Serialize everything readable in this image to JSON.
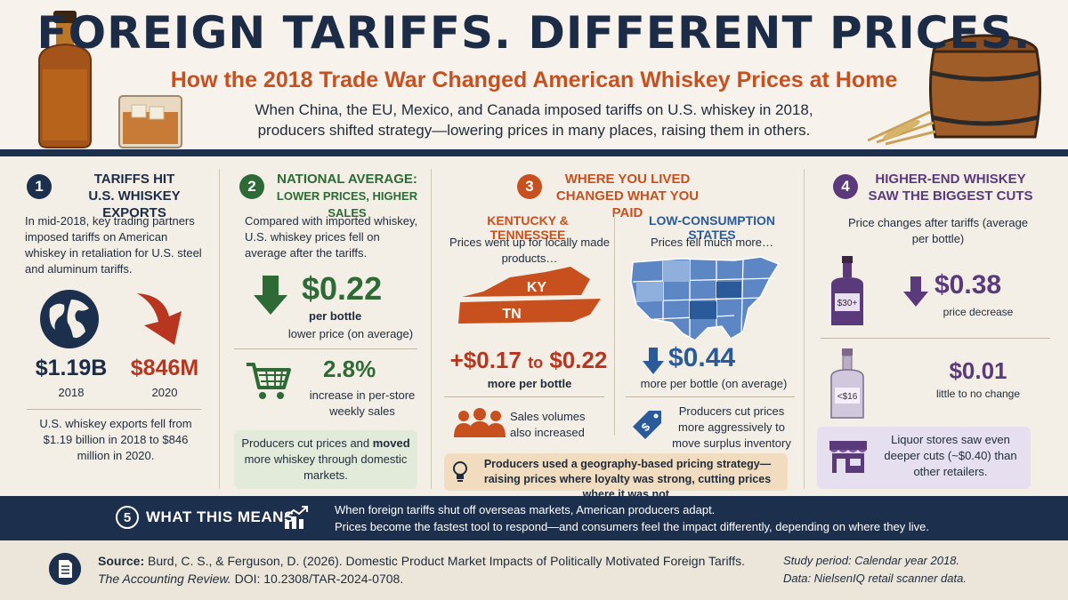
{
  "header": {
    "title": "FOREIGN TARIFFS. DIFFERENT PRICES.",
    "subtitle": "How the 2018 Trade War Changed American Whiskey Prices at Home",
    "intro_line1": "When China, the EU, Mexico, and Canada imposed tariffs on U.S. whiskey in 2018,",
    "intro_line2": "producers shifted strategy—lowering prices in many places, raising them in others."
  },
  "colors": {
    "navy": "#1c2f4c",
    "orange": "#c8501f",
    "green": "#2e6a35",
    "blue": "#2b5a9a",
    "purple": "#5a3a7a",
    "red": "#b8361f"
  },
  "section1": {
    "number": "1",
    "heading_l1": "TARIFFS HIT",
    "heading_l2": "U.S. WHISKEY EXPORTS",
    "text": "In mid-2018, key trading partners imposed tariffs on American whiskey in retaliation for U.S. steel and aluminum tariffs.",
    "value_2018": "$1.19B",
    "label_2018": "2018",
    "value_2020": "$846M",
    "label_2020": "2020",
    "summary": "U.S. whiskey exports fell from $1.19 billion in 2018 to $846 million in 2020.",
    "icons": [
      "globe-icon",
      "down-arrow-icon"
    ]
  },
  "section2": {
    "number": "2",
    "heading_l1": "NATIONAL AVERAGE:",
    "heading_l2": "LOWER PRICES, HIGHER SALES",
    "text": "Compared with imported whiskey, U.S. whiskey prices fell on average after the tariffs.",
    "price_value": "$0.22",
    "price_unit": "per bottle",
    "price_label": "lower price (on average)",
    "sales_value": "2.8%",
    "sales_label": "increase in per-store weekly sales",
    "callout_a": "Producers cut prices and ",
    "callout_b": "moved",
    "callout_c": " more whiskey through domestic markets.",
    "icons": [
      "down-arrow-icon",
      "shopping-cart-icon"
    ]
  },
  "section3": {
    "number": "3",
    "heading_l1": "WHERE YOU LIVED",
    "heading_l2": "CHANGED WHAT YOU PAID",
    "left_title": "KENTUCKY & TENNESSEE",
    "left_text": "Prices went up for locally made products…",
    "ky": "KY",
    "tn": "TN",
    "left_value_a": "+$0.17",
    "left_value_to": "to",
    "left_value_b": "$0.22",
    "left_label": "more per bottle",
    "left_note": "Sales volumes also increased",
    "right_title": "LOW-CONSUMPTION STATES",
    "right_text": "Prices fell much more…",
    "right_value": "$0.44",
    "right_label": "more per bottle (on average)",
    "right_note": "Producers cut prices more aggressively to move surplus inventory",
    "callout": "Producers used a geography-based pricing strategy—raising prices where loyalty was strong, cutting prices where it was not.",
    "icons": [
      "state-map-icon",
      "us-map-icon",
      "people-icon",
      "price-tag-icon",
      "lightbulb-icon"
    ]
  },
  "section4": {
    "number": "4",
    "heading_l1": "HIGHER-END WHISKEY",
    "heading_l2": "SAW THE BIGGEST CUTS",
    "text": "Price changes after tariffs (average per bottle)",
    "bottle1_label": "$30+",
    "value1": "$0.38",
    "label1": "price decrease",
    "bottle2_label": "<$16",
    "value2": "$0.01",
    "label2": "little to no change",
    "callout": "Liquor stores saw even deeper cuts (~$0.40) than other retailers.",
    "icons": [
      "bottle-icon",
      "store-icon"
    ]
  },
  "means": {
    "number": "5",
    "label": "WHAT THIS MEANS",
    "line1": "When foreign tariffs shut off overseas markets, American producers adapt.",
    "line2": "Prices become the fastest tool to respond—and consumers feel the impact differently, depending on where they live."
  },
  "source": {
    "label": "Source:",
    "citation": " Burd, C. S., & Ferguson, D. (2026). Domestic Product Market Impacts of Politically Motivated Foreign Tariffs.",
    "journal": "The Accounting Review.",
    "doi": "  DOI: 10.2308/TAR-2024-0708.",
    "study_period": "Study period: Calendar year 2018.",
    "data_note": "Data: NielsenIQ retail scanner data."
  }
}
